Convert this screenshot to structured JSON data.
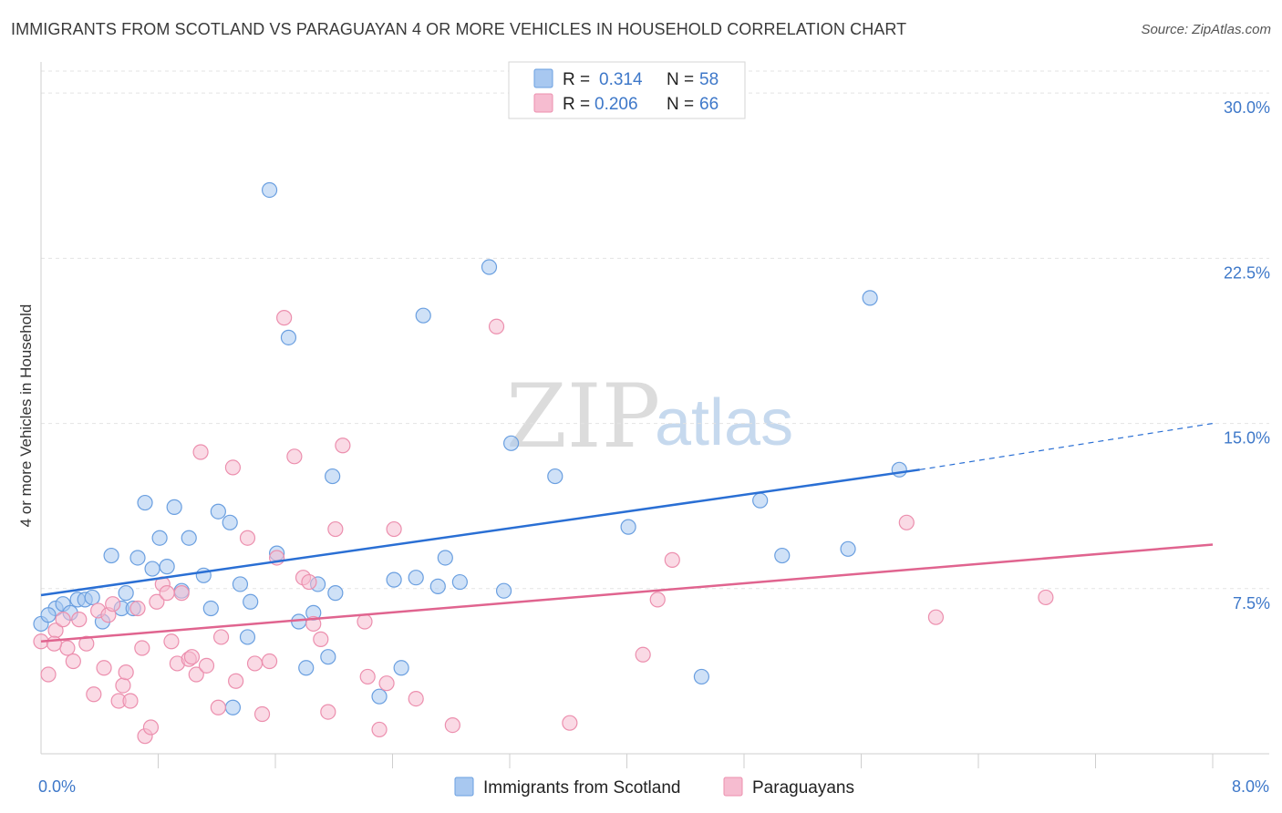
{
  "title": "IMMIGRANTS FROM SCOTLAND VS PARAGUAYAN 4 OR MORE VEHICLES IN HOUSEHOLD CORRELATION CHART",
  "source": "Source: ZipAtlas.com",
  "watermark": {
    "zip": "ZIP",
    "atlas": "atlas"
  },
  "legend": {
    "rows": [
      {
        "r_label": "R =",
        "r_value": "0.314",
        "n_label": "N =",
        "n_value": "58"
      },
      {
        "r_label": "R =",
        "r_value": "0.206",
        "n_label": "N =",
        "n_value": "66"
      }
    ]
  },
  "bottom_legend": {
    "items": [
      {
        "label": "Immigrants from Scotland"
      },
      {
        "label": "Paraguayans"
      }
    ]
  },
  "colors": {
    "blue_fill": "#a8c8f0",
    "blue_stroke": "#6a9fe0",
    "blue_line": "#2a6fd4",
    "pink_fill": "#f6bcd0",
    "pink_stroke": "#ec8fae",
    "pink_line": "#e0648f",
    "tick_color": "#3e78c9",
    "grid": "#e3e3e3"
  },
  "chart_data": {
    "type": "scatter",
    "xlabel": "",
    "ylabel": "4 or more Vehicles in Household",
    "xlim": [
      0,
      8
    ],
    "ylim": [
      0,
      31
    ],
    "x_tick_labels": [
      {
        "value": 0,
        "label": "0.0%"
      },
      {
        "value": 8,
        "label": "8.0%"
      }
    ],
    "y_tick_labels": [
      {
        "value": 7.5,
        "label": "7.5%"
      },
      {
        "value": 15,
        "label": "15.0%"
      },
      {
        "value": 22.5,
        "label": "22.5%"
      },
      {
        "value": 30,
        "label": "30.0%"
      }
    ],
    "x_minor_ticks": [
      0.8,
      1.6,
      2.4,
      3.2,
      4.0,
      4.8,
      5.6,
      6.4,
      7.2,
      8.0
    ],
    "grid": true,
    "series": [
      {
        "name": "Immigrants from Scotland",
        "color": "#a8c8f0",
        "points": [
          [
            0.0,
            5.9
          ],
          [
            0.1,
            6.6
          ],
          [
            0.15,
            6.8
          ],
          [
            0.2,
            6.4
          ],
          [
            0.25,
            7.0
          ],
          [
            0.3,
            7.0
          ],
          [
            0.35,
            7.1
          ],
          [
            0.42,
            6.0
          ],
          [
            0.48,
            9.0
          ],
          [
            0.55,
            6.6
          ],
          [
            0.58,
            7.3
          ],
          [
            0.63,
            6.6
          ],
          [
            0.66,
            8.9
          ],
          [
            0.71,
            11.4
          ],
          [
            0.76,
            8.4
          ],
          [
            0.81,
            9.8
          ],
          [
            0.86,
            8.5
          ],
          [
            0.91,
            11.2
          ],
          [
            0.96,
            7.4
          ],
          [
            1.01,
            9.8
          ],
          [
            1.11,
            8.1
          ],
          [
            1.16,
            6.6
          ],
          [
            1.21,
            11.0
          ],
          [
            1.29,
            10.5
          ],
          [
            1.36,
            7.7
          ],
          [
            1.41,
            5.3
          ],
          [
            1.43,
            6.9
          ],
          [
            1.31,
            2.1
          ],
          [
            1.56,
            25.6
          ],
          [
            1.61,
            9.1
          ],
          [
            1.69,
            18.9
          ],
          [
            1.76,
            6.0
          ],
          [
            1.81,
            3.9
          ],
          [
            1.86,
            6.4
          ],
          [
            1.89,
            7.7
          ],
          [
            1.96,
            4.4
          ],
          [
            1.99,
            12.6
          ],
          [
            2.01,
            7.3
          ],
          [
            2.31,
            2.6
          ],
          [
            2.41,
            7.9
          ],
          [
            2.46,
            3.9
          ],
          [
            2.56,
            8.0
          ],
          [
            2.61,
            19.9
          ],
          [
            2.71,
            7.6
          ],
          [
            2.76,
            8.9
          ],
          [
            2.86,
            7.8
          ],
          [
            3.06,
            22.1
          ],
          [
            3.16,
            7.4
          ],
          [
            3.21,
            14.1
          ],
          [
            3.51,
            12.6
          ],
          [
            4.01,
            10.3
          ],
          [
            4.51,
            3.5
          ],
          [
            4.91,
            11.5
          ],
          [
            5.06,
            9.0
          ],
          [
            5.51,
            9.3
          ],
          [
            5.66,
            20.7
          ],
          [
            5.86,
            12.9
          ],
          [
            0.05,
            6.3
          ]
        ]
      },
      {
        "name": "Paraguayans",
        "color": "#f6bcd0",
        "points": [
          [
            0.0,
            5.1
          ],
          [
            0.05,
            3.6
          ],
          [
            0.1,
            5.6
          ],
          [
            0.15,
            6.1
          ],
          [
            0.18,
            4.8
          ],
          [
            0.22,
            4.2
          ],
          [
            0.26,
            6.1
          ],
          [
            0.31,
            5.0
          ],
          [
            0.36,
            2.7
          ],
          [
            0.39,
            6.5
          ],
          [
            0.43,
            3.9
          ],
          [
            0.46,
            6.3
          ],
          [
            0.49,
            6.8
          ],
          [
            0.53,
            2.4
          ],
          [
            0.56,
            3.1
          ],
          [
            0.58,
            3.7
          ],
          [
            0.61,
            2.4
          ],
          [
            0.66,
            6.6
          ],
          [
            0.69,
            4.8
          ],
          [
            0.71,
            0.8
          ],
          [
            0.75,
            1.2
          ],
          [
            0.79,
            6.9
          ],
          [
            0.83,
            7.7
          ],
          [
            0.86,
            7.3
          ],
          [
            0.89,
            5.1
          ],
          [
            0.93,
            4.1
          ],
          [
            0.96,
            7.3
          ],
          [
            1.01,
            4.3
          ],
          [
            1.03,
            4.4
          ],
          [
            1.06,
            3.6
          ],
          [
            1.09,
            13.7
          ],
          [
            1.13,
            4.0
          ],
          [
            1.21,
            2.1
          ],
          [
            1.23,
            5.3
          ],
          [
            1.31,
            13.0
          ],
          [
            1.33,
            3.3
          ],
          [
            1.41,
            9.8
          ],
          [
            1.46,
            4.1
          ],
          [
            1.51,
            1.8
          ],
          [
            1.56,
            4.2
          ],
          [
            1.61,
            8.9
          ],
          [
            1.66,
            19.8
          ],
          [
            1.73,
            13.5
          ],
          [
            1.79,
            8.0
          ],
          [
            1.83,
            7.8
          ],
          [
            1.86,
            5.9
          ],
          [
            1.91,
            5.2
          ],
          [
            1.96,
            1.9
          ],
          [
            2.01,
            10.2
          ],
          [
            2.06,
            14.0
          ],
          [
            2.21,
            6.0
          ],
          [
            2.23,
            3.5
          ],
          [
            2.31,
            1.1
          ],
          [
            2.36,
            3.2
          ],
          [
            2.41,
            10.2
          ],
          [
            2.56,
            2.5
          ],
          [
            2.81,
            1.3
          ],
          [
            3.11,
            19.4
          ],
          [
            3.61,
            1.4
          ],
          [
            4.11,
            4.5
          ],
          [
            4.21,
            7.0
          ],
          [
            4.31,
            8.8
          ],
          [
            5.91,
            10.5
          ],
          [
            6.11,
            6.2
          ],
          [
            6.86,
            7.1
          ],
          [
            0.09,
            5.0
          ]
        ]
      }
    ],
    "trend_lines": [
      {
        "series": "Immigrants from Scotland",
        "x0": 0.0,
        "y0": 7.2,
        "x1": 6.0,
        "y1": 12.9,
        "dashed_to_x": 8.0,
        "dashed_to_y": 15.0
      },
      {
        "series": "Paraguayans",
        "x0": 0.0,
        "y0": 5.1,
        "x1": 8.0,
        "y1": 9.5
      }
    ]
  }
}
